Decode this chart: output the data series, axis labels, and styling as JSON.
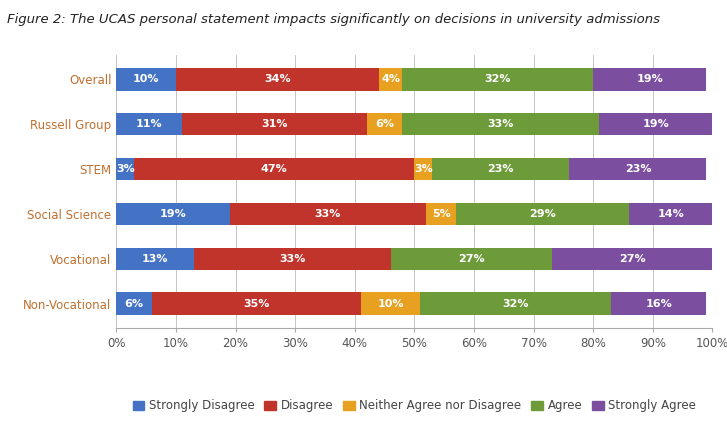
{
  "title": "Figure 2: The UCAS personal statement impacts significantly on decisions in university admissions",
  "categories": [
    "Overall",
    "Russell Group",
    "STEM",
    "Social Science",
    "Vocational",
    "Non-Vocational"
  ],
  "segments": {
    "Strongly Disagree": [
      10,
      11,
      3,
      19,
      13,
      6
    ],
    "Disagree": [
      34,
      31,
      47,
      33,
      33,
      35
    ],
    "Neither Agree nor Disagree": [
      4,
      6,
      3,
      5,
      0,
      10
    ],
    "Agree": [
      32,
      33,
      23,
      29,
      27,
      32
    ],
    "Strongly Agree": [
      19,
      19,
      23,
      14,
      27,
      16
    ]
  },
  "colors": {
    "Strongly Disagree": "#4472C4",
    "Disagree": "#C0342C",
    "Neither Agree nor Disagree": "#E8A020",
    "Agree": "#6E9B3A",
    "Strongly Agree": "#7B4EA0"
  },
  "y_label_color": "#C07030",
  "legend_labels": [
    "Strongly Disagree",
    "Disagree",
    "Neither Agree nor Disagree",
    "Agree",
    "Strongly Agree"
  ],
  "xlim": [
    0,
    100
  ],
  "xticks": [
    0,
    10,
    20,
    30,
    40,
    50,
    60,
    70,
    80,
    90,
    100
  ],
  "xtick_labels": [
    "0%",
    "10%",
    "20%",
    "30%",
    "40%",
    "50%",
    "60%",
    "70%",
    "80%",
    "90%",
    "100%"
  ],
  "background_color": "#FFFFFF",
  "title_fontsize": 9.5,
  "label_fontsize": 8,
  "tick_fontsize": 8.5,
  "legend_fontsize": 8.5,
  "bar_height": 0.5
}
